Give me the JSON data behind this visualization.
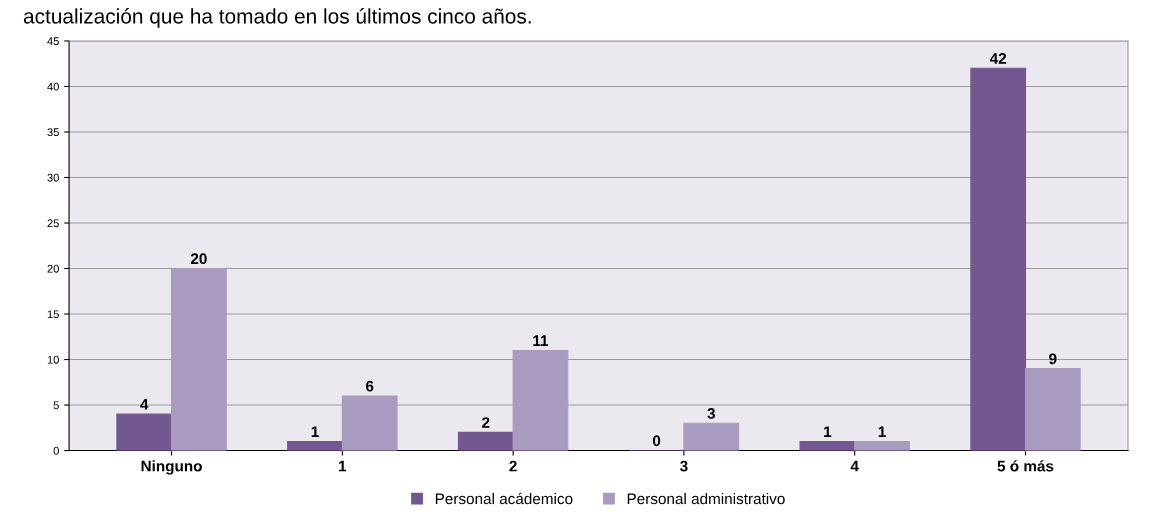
{
  "chart_data": {
    "type": "bar",
    "title": "actualización que ha tomado en los últimos cinco años.",
    "categories": [
      "Ninguno",
      "1",
      "2",
      "3",
      "4",
      "5 ó más"
    ],
    "series": [
      {
        "name": "Personal acádemico",
        "color": "#735791",
        "values": [
          4,
          1,
          2,
          0,
          1,
          42
        ]
      },
      {
        "name": "Personal administrativo",
        "color": "#a99bc0",
        "values": [
          20,
          6,
          11,
          3,
          1,
          9
        ]
      }
    ],
    "ylim": [
      0,
      45
    ],
    "yticks": [
      0,
      5,
      10,
      15,
      20,
      25,
      30,
      35,
      40,
      45
    ],
    "grid": "y",
    "legend": "bottom",
    "data_labels": true
  }
}
